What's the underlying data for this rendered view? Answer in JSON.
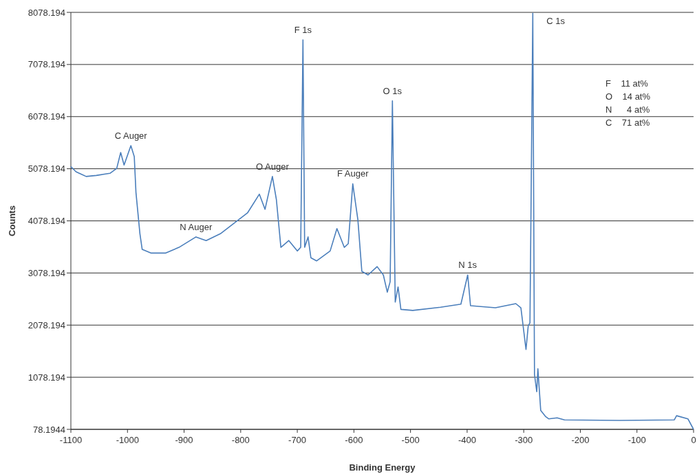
{
  "chart_data": {
    "type": "line",
    "xlabel": "Binding Energy",
    "ylabel": "Counts",
    "xlim": [
      -1100,
      0
    ],
    "xticks": [
      -1100,
      -1000,
      -900,
      -800,
      -700,
      -600,
      -500,
      -400,
      -300,
      -200,
      -100,
      0
    ],
    "ylim": [
      78.1944,
      8078.194
    ],
    "yticks": [
      78.1944,
      1078.194,
      2078.194,
      3078.194,
      4078.194,
      5078.194,
      6078.194,
      7078.194,
      8078.194
    ],
    "grid": "y",
    "marker": "none",
    "line_style": "solid",
    "series": [
      {
        "color": "#4a7ebb",
        "x": [
          -1100,
          -1091,
          -1073,
          -1055,
          -1031,
          -1019,
          -1012,
          -1006,
          -994,
          -988,
          -985,
          -978,
          -974,
          -958,
          -933,
          -909,
          -879,
          -861,
          -836,
          -812,
          -788,
          -767,
          -757,
          -744,
          -737,
          -729,
          -715,
          -700,
          -694,
          -690,
          -687,
          -681,
          -676,
          -666,
          -642,
          -630,
          -617,
          -610,
          -602,
          -593,
          -586,
          -575,
          -559,
          -548,
          -541,
          -536,
          -532,
          -527,
          -522,
          -517,
          -496,
          -447,
          -411,
          -399,
          -394,
          -350,
          -314,
          -305,
          -296,
          -292,
          -289,
          -284,
          -281,
          -277,
          -275,
          -270,
          -261,
          -256,
          -241,
          -228,
          -131,
          -34,
          -30,
          -10,
          0
        ],
        "values": [
          5120,
          5020,
          4930,
          4950,
          4990,
          5085,
          5390,
          5150,
          5520,
          5310,
          4620,
          3830,
          3530,
          3460,
          3460,
          3570,
          3770,
          3700,
          3830,
          4030,
          4230,
          4590,
          4300,
          4930,
          4490,
          3570,
          3700,
          3500,
          3570,
          7550,
          3570,
          3770,
          3370,
          3310,
          3500,
          3930,
          3570,
          3640,
          4790,
          4100,
          3110,
          3040,
          3200,
          3040,
          2710,
          2910,
          6380,
          2520,
          2810,
          2380,
          2360,
          2420,
          2480,
          3040,
          2450,
          2410,
          2490,
          2410,
          1610,
          2070,
          2120,
          8060,
          1130,
          800,
          1240,
          440,
          320,
          280,
          300,
          260,
          250,
          260,
          340,
          280,
          78.1944
        ]
      }
    ],
    "annotations": [
      {
        "text": "C Auger",
        "x": -994,
        "y": 5520
      },
      {
        "text": "N Auger",
        "x": -879,
        "y": 3770
      },
      {
        "text": "O Auger",
        "x": -744,
        "y": 4930
      },
      {
        "text": "F 1s",
        "x": -690,
        "y": 7550
      },
      {
        "text": "F Auger",
        "x": -602,
        "y": 4790
      },
      {
        "text": "O 1s",
        "x": -532,
        "y": 6380
      },
      {
        "text": "N 1s",
        "x": -399,
        "y": 3040
      },
      {
        "text": "C 1s",
        "x": -284,
        "y": 8060
      },
      "F    11 at%",
      "O    14 at%",
      "N      4 at%",
      "C    71 at%"
    ]
  }
}
